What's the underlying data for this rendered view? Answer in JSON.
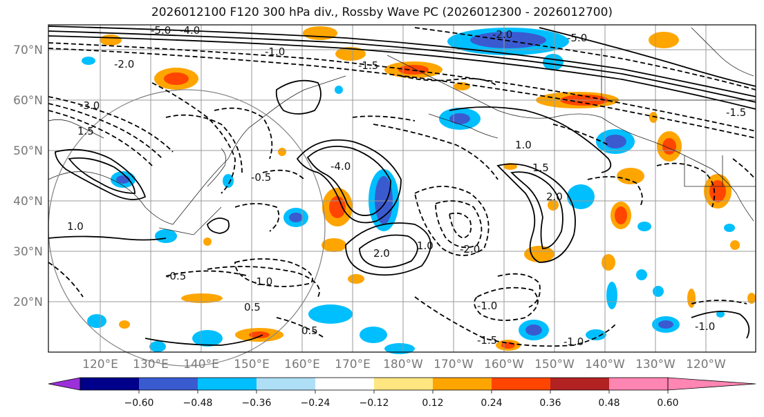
{
  "title": "2026012100 F120 300 hPa div., Rossby Wave PC (2026012300 - 2026012700)",
  "map": {
    "latitude_labels": [
      "70°N",
      "60°N",
      "50°N",
      "40°N",
      "30°N",
      "20°N"
    ],
    "longitude_labels": [
      "120°E",
      "130°E",
      "140°E",
      "150°E",
      "160°E",
      "170°E",
      "180°W",
      "170°W",
      "160°W",
      "150°W",
      "140°W",
      "130°W",
      "120°W"
    ],
    "contour_labels": [
      "-5.0",
      "-4.0",
      "-2.0",
      "-1.0",
      "-1.5",
      "-3.0",
      "-0.5",
      "1.0",
      "1.5",
      "2.0",
      "-4.0",
      "-2.0",
      "1.0",
      "-1.0",
      "-1.5",
      "-0.5",
      "0.5",
      "1.0",
      "2.0",
      "-2.0",
      "-1.0",
      "-1.5",
      "-1.0",
      "0.5",
      "-1.0",
      "1.5",
      "-5.0"
    ]
  },
  "colorbar": {
    "ticks": [
      "−0.60",
      "−0.48",
      "−0.36",
      "−0.24",
      "−0.12",
      "0.12",
      "0.24",
      "0.36",
      "0.48",
      "0.60"
    ],
    "colors": [
      "#9b30d9",
      "#00008b",
      "#3a5bd0",
      "#00bfff",
      "#aedff7",
      "#ffffff",
      "#ffe680",
      "#ffa500",
      "#ff4500",
      "#b22222",
      "#ff85b3"
    ]
  },
  "colors": {
    "neg_strong": "#3a5bd0",
    "neg_mid": "#00bfff",
    "neg_weak": "#aedff7",
    "pos_weak": "#ffe680",
    "pos_mid": "#ffa500",
    "pos_strong": "#ff4500"
  }
}
